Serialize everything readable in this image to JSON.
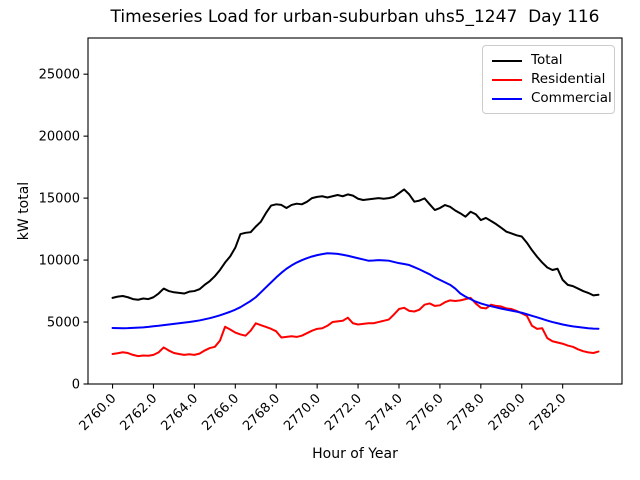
{
  "chart_data": {
    "type": "line",
    "title": "Timeseries Load for urban-suburban uhs5_1247  Day 116",
    "xlabel": "Hour of Year",
    "ylabel": "kW total",
    "grid": false,
    "legend_position": "upper right",
    "x_start": 2760.0,
    "x_step": 0.25,
    "xlim": [
      2758.8,
      2784.9
    ],
    "ylim": [
      0,
      27920
    ],
    "xticks": [
      2760,
      2762,
      2764,
      2766,
      2768,
      2770,
      2772,
      2774,
      2776,
      2778,
      2780,
      2782
    ],
    "xtick_labels": [
      "2760.0",
      "2762.0",
      "2764.0",
      "2766.0",
      "2768.0",
      "2770.0",
      "2772.0",
      "2774.0",
      "2776.0",
      "2778.0",
      "2780.0",
      "2782.0"
    ],
    "yticks": [
      0,
      5000,
      10000,
      15000,
      20000,
      25000
    ],
    "ytick_labels": [
      "0",
      "5000",
      "10000",
      "15000",
      "20000",
      "25000"
    ],
    "series": [
      {
        "name": "Total",
        "color": "#000000",
        "values": [
          6950,
          7050,
          7100,
          7000,
          6850,
          6800,
          6900,
          6850,
          7000,
          7300,
          7700,
          7500,
          7400,
          7350,
          7300,
          7450,
          7500,
          7650,
          8000,
          8300,
          8700,
          9200,
          9800,
          10300,
          11000,
          12100,
          12200,
          12250,
          12700,
          13100,
          13800,
          14400,
          14500,
          14450,
          14200,
          14450,
          14550,
          14500,
          14700,
          15000,
          15100,
          15150,
          15050,
          15150,
          15250,
          15150,
          15300,
          15200,
          14950,
          14850,
          14900,
          14950,
          15000,
          14950,
          15000,
          15100,
          15400,
          15700,
          15300,
          14710,
          14800,
          14980,
          14500,
          14040,
          14200,
          14440,
          14300,
          14000,
          13770,
          13500,
          13900,
          13700,
          13230,
          13400,
          13150,
          12900,
          12600,
          12290,
          12150,
          12000,
          11900,
          11400,
          10800,
          10270,
          9800,
          9400,
          9200,
          9300,
          8400,
          8000,
          7900,
          7700,
          7500,
          7350,
          7150,
          7200
        ]
      },
      {
        "name": "Residential",
        "color": "#ff0000",
        "values": [
          2420,
          2480,
          2560,
          2500,
          2350,
          2250,
          2300,
          2280,
          2350,
          2550,
          2950,
          2700,
          2500,
          2420,
          2350,
          2400,
          2350,
          2450,
          2700,
          2900,
          3000,
          3500,
          4620,
          4400,
          4150,
          4000,
          3900,
          4300,
          4900,
          4750,
          4600,
          4450,
          4250,
          3750,
          3800,
          3850,
          3800,
          3900,
          4100,
          4300,
          4450,
          4500,
          4700,
          5000,
          5050,
          5100,
          5350,
          4900,
          4800,
          4850,
          4900,
          4900,
          5000,
          5100,
          5200,
          5600,
          6050,
          6150,
          5900,
          5850,
          6000,
          6400,
          6500,
          6300,
          6350,
          6600,
          6750,
          6700,
          6750,
          6850,
          6950,
          6500,
          6150,
          6100,
          6400,
          6300,
          6250,
          6100,
          6050,
          5900,
          5700,
          5500,
          4700,
          4450,
          4500,
          3700,
          3450,
          3350,
          3250,
          3100,
          3000,
          2800,
          2650,
          2550,
          2500,
          2620
        ]
      },
      {
        "name": "Commercial",
        "color": "#0000ff",
        "values": [
          4520,
          4510,
          4500,
          4510,
          4530,
          4550,
          4570,
          4610,
          4660,
          4700,
          4750,
          4800,
          4850,
          4900,
          4950,
          5000,
          5060,
          5130,
          5220,
          5310,
          5420,
          5540,
          5680,
          5830,
          6000,
          6200,
          6450,
          6700,
          7000,
          7400,
          7800,
          8200,
          8600,
          8970,
          9300,
          9570,
          9800,
          9990,
          10150,
          10290,
          10400,
          10480,
          10550,
          10530,
          10500,
          10430,
          10350,
          10250,
          10150,
          10050,
          9950,
          9970,
          10000,
          9980,
          9950,
          9850,
          9750,
          9680,
          9600,
          9430,
          9250,
          9050,
          8850,
          8600,
          8400,
          8200,
          8000,
          7700,
          7300,
          7050,
          6850,
          6650,
          6500,
          6380,
          6280,
          6180,
          6080,
          6000,
          5920,
          5840,
          5750,
          5630,
          5500,
          5380,
          5250,
          5120,
          5000,
          4900,
          4800,
          4720,
          4650,
          4600,
          4550,
          4500,
          4470,
          4460
        ]
      }
    ]
  }
}
